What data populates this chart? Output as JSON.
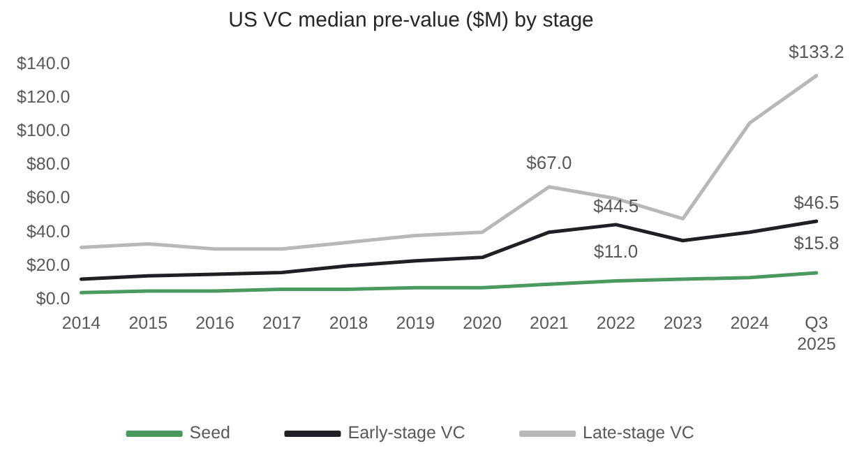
{
  "chart_data": {
    "type": "line",
    "title": "US VC median pre-value ($M) by stage",
    "categories": [
      "2014",
      "2015",
      "2016",
      "2017",
      "2018",
      "2019",
      "2020",
      "2021",
      "2022",
      "2023",
      "2024",
      "Q3\n2025"
    ],
    "series": [
      {
        "name": "Seed",
        "color": "#4a9a5f",
        "values": [
          4,
          5,
          5,
          6,
          6,
          7,
          7,
          9,
          11.0,
          12,
          13,
          15.8
        ],
        "value_labels": [
          null,
          null,
          null,
          null,
          null,
          null,
          null,
          null,
          "$11.0",
          null,
          null,
          "$15.8"
        ]
      },
      {
        "name": "Early-stage VC",
        "color": "#1f1f26",
        "values": [
          12,
          14,
          15,
          16,
          20,
          23,
          25,
          40,
          44.5,
          35,
          40,
          46.5
        ],
        "value_labels": [
          null,
          null,
          null,
          null,
          null,
          null,
          null,
          null,
          "$44.5",
          null,
          null,
          "$46.5"
        ]
      },
      {
        "name": "Late-stage VC",
        "color": "#b8b8b8",
        "values": [
          31,
          33,
          30,
          30,
          34,
          38,
          40,
          67.0,
          60,
          48,
          105,
          133.2
        ],
        "value_labels": [
          null,
          null,
          null,
          null,
          null,
          null,
          null,
          "$67.0",
          null,
          null,
          null,
          "$133.2"
        ]
      }
    ],
    "ylim": [
      0,
      140
    ],
    "yticks": [
      {
        "value": 0,
        "label": "$0.0"
      },
      {
        "value": 20,
        "label": "$20.0"
      },
      {
        "value": 40,
        "label": "$40.0"
      },
      {
        "value": 60,
        "label": "$60.0"
      },
      {
        "value": 80,
        "label": "$80.0"
      },
      {
        "value": 100,
        "label": "$100.0"
      },
      {
        "value": 120,
        "label": "$120.0"
      },
      {
        "value": 140,
        "label": "$140.0"
      }
    ],
    "grid": false,
    "legend": "bottom",
    "marker": "none",
    "line_style": "solid"
  }
}
